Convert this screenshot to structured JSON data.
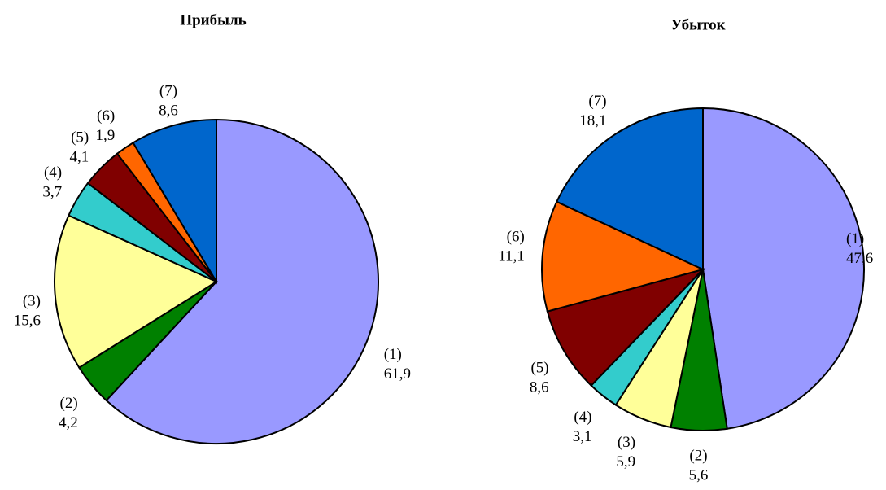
{
  "chart_data": [
    {
      "type": "pie",
      "title": "Прибыль",
      "categories": [
        "(1)",
        "(2)",
        "(3)",
        "(4)",
        "(5)",
        "(6)",
        "(7)"
      ],
      "values": [
        61.9,
        4.2,
        15.6,
        3.7,
        4.1,
        1.9,
        8.6
      ],
      "value_labels": [
        "61,9",
        "4,2",
        "15,6",
        "3,7",
        "4,1",
        "1,9",
        "8,6"
      ],
      "colors": [
        "#9999ff",
        "#008000",
        "#ffff99",
        "#33cccc",
        "#800000",
        "#ff6600",
        "#0066cc"
      ]
    },
    {
      "type": "pie",
      "title": "Убыток",
      "categories": [
        "(1)",
        "(2)",
        "(3)",
        "(4)",
        "(5)",
        "(6)",
        "(7)"
      ],
      "values": [
        47.6,
        5.6,
        5.9,
        3.1,
        8.6,
        11.1,
        18.1
      ],
      "value_labels": [
        "47,6",
        "5,6",
        "5,9",
        "3,1",
        "8,6",
        "11,1",
        "18,1"
      ],
      "colors": [
        "#9999ff",
        "#008000",
        "#ffff99",
        "#33cccc",
        "#800000",
        "#ff6600",
        "#0066cc"
      ]
    }
  ]
}
